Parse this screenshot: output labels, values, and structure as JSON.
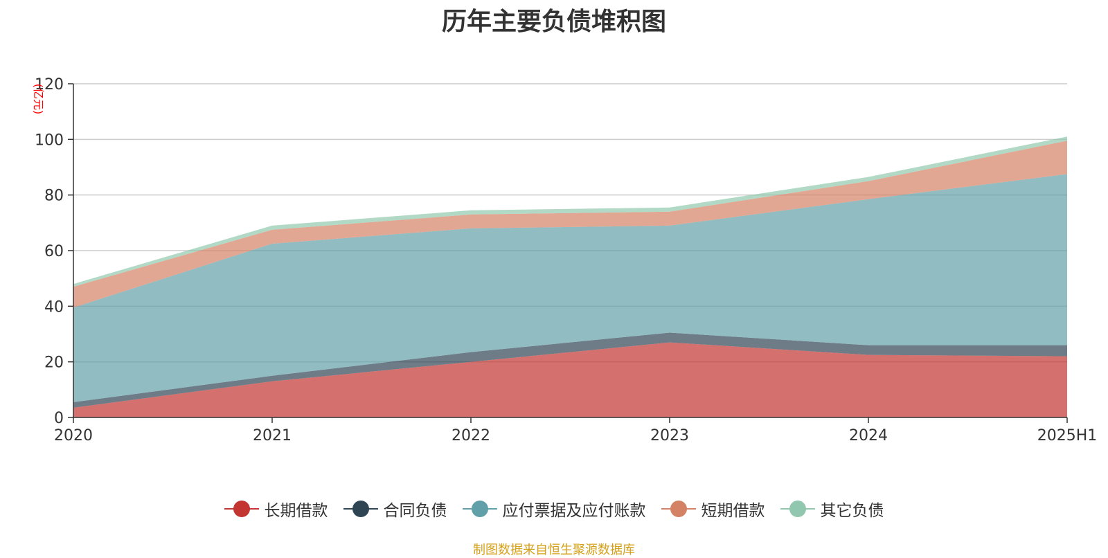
{
  "chart_data": {
    "type": "area",
    "stacked": true,
    "title": "历年主要负债堆积图",
    "unit_label": "(亿元)",
    "categories": [
      "2020",
      "2021",
      "2022",
      "2023",
      "2024",
      "2025H1"
    ],
    "ylim": [
      0,
      120
    ],
    "yticks": [
      0,
      20,
      40,
      60,
      80,
      100,
      120
    ],
    "grid": true,
    "legend_position": "bottom",
    "series": [
      {
        "name": "长期借款",
        "color": "#c23531",
        "values": [
          3.5,
          13.0,
          20.0,
          27.0,
          22.5,
          22.0
        ]
      },
      {
        "name": "合同负债",
        "color": "#2f4554",
        "values": [
          2.0,
          2.0,
          3.5,
          3.5,
          3.5,
          4.0
        ]
      },
      {
        "name": "应付票据及应付账款",
        "color": "#61a0a8",
        "values": [
          34.0,
          47.5,
          44.5,
          38.5,
          52.5,
          61.5
        ]
      },
      {
        "name": "短期借款",
        "color": "#d48265",
        "values": [
          7.5,
          5.0,
          5.0,
          5.0,
          6.5,
          12.0
        ]
      },
      {
        "name": "其它负债",
        "color": "#91c7ae",
        "values": [
          1.0,
          1.5,
          1.5,
          1.5,
          1.5,
          1.5
        ]
      }
    ],
    "source_note": "制图数据来自恒生聚源数据库"
  }
}
